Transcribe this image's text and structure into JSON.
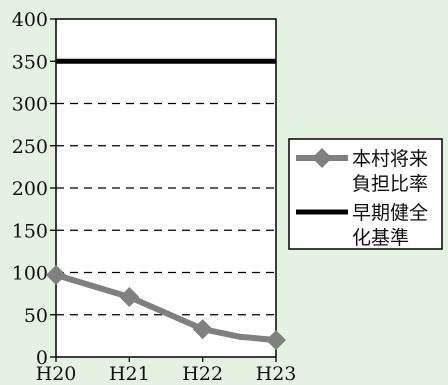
{
  "chart_data": {
    "type": "line",
    "categories": [
      "H20",
      "H21",
      "H22",
      "H23"
    ],
    "ylim": [
      0,
      400
    ],
    "yticks": [
      0,
      50,
      100,
      150,
      200,
      250,
      300,
      350,
      400
    ],
    "grid": "horizontal-dashed",
    "legend_position": "right",
    "series": [
      {
        "name": "本村将来負担比率",
        "name_lines": [
          "本村将来",
          "負担比率"
        ],
        "x": [
          "H20",
          "H20.5",
          "H21",
          "H21.5",
          "H22",
          "H22.5",
          "H23"
        ],
        "values": [
          97,
          84,
          71,
          52,
          33,
          24,
          20
        ],
        "markers": [
          true,
          false,
          true,
          false,
          true,
          false,
          true
        ],
        "color": "#808080",
        "marker": "diamond"
      },
      {
        "name": "早期健全化基準",
        "name_lines": [
          "早期健全",
          "化基準"
        ],
        "x": [
          "H20",
          "H23"
        ],
        "values": [
          350,
          350
        ],
        "color": "#000000",
        "marker": "none"
      }
    ]
  }
}
